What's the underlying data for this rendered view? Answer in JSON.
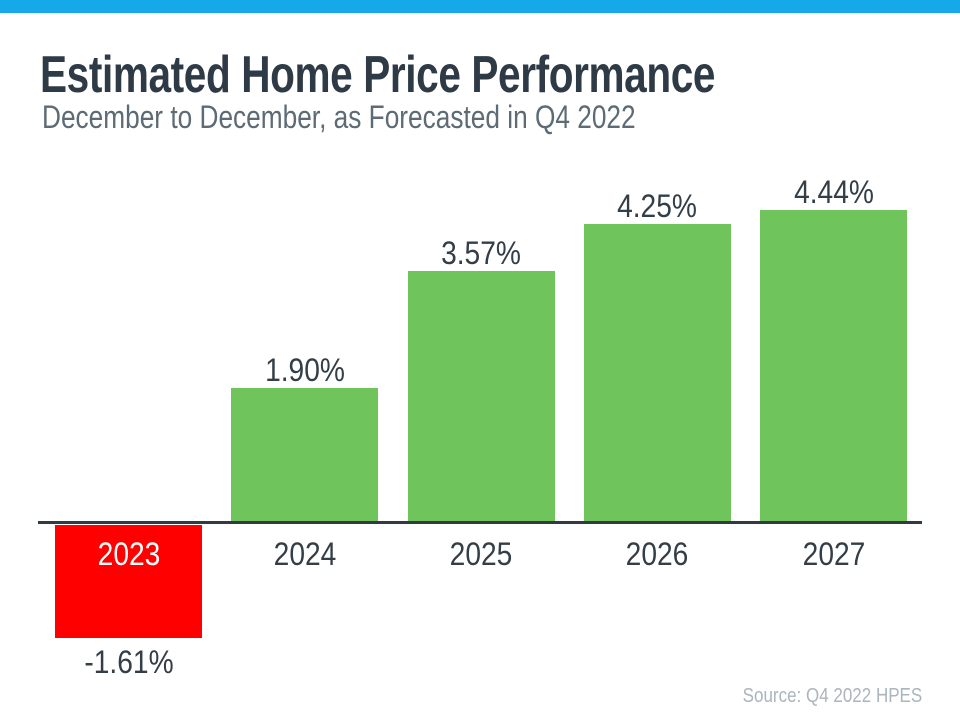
{
  "slide": {
    "accent_bar_color": "#16A9EA",
    "title": "Estimated Home Price Performance",
    "subtitle": "December to December, as Forecasted in Q4 2022",
    "source_note": "Source: Q4 2022 HPES"
  },
  "chart_data": {
    "type": "bar",
    "title": "Estimated Home Price Performance",
    "subtitle": "December to December, as Forecasted in Q4 2022",
    "categories": [
      "2023",
      "2024",
      "2025",
      "2026",
      "2027"
    ],
    "values": [
      -1.61,
      1.9,
      3.57,
      4.25,
      4.44
    ],
    "value_labels": [
      "-1.61%",
      "1.90%",
      "3.57%",
      "4.25%",
      "4.44%"
    ],
    "bar_color_positive": "#6FC45C",
    "bar_color_negative": "#FF0000",
    "axis_color": "#333B42",
    "label_text_color": "#333E47",
    "negative_category_label_color": "#FFFFFF",
    "baseline": 0,
    "ylim": [
      -2,
      5
    ],
    "grid": false,
    "legend": false,
    "xlabel": "",
    "ylabel": "",
    "source": "Source: Q4 2022 HPES"
  }
}
